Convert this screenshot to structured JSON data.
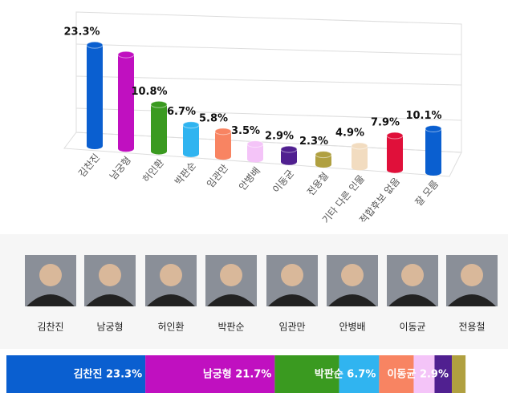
{
  "chart_data": {
    "type": "bar",
    "categories": [
      "김찬진",
      "남궁형",
      "허인환",
      "박판순",
      "임관만",
      "안병배",
      "이동균",
      "전용철",
      "기타 다른 인물",
      "적합후보 없음",
      "잘 모름"
    ],
    "values": [
      23.3,
      21.7,
      10.8,
      6.7,
      5.8,
      3.5,
      2.9,
      2.3,
      4.9,
      7.9,
      10.1
    ],
    "value_labels": [
      "23.3%",
      null,
      "10.8%",
      "6.7%",
      "5.8%",
      "3.5%",
      "2.9%",
      "2.3%",
      "4.9%",
      "7.9%",
      "10.1%"
    ],
    "colors": [
      "#0a5fd0",
      "#c010c0",
      "#3a9a20",
      "#30b4f0",
      "#f88462",
      "#f4c4f8",
      "#502090",
      "#b0a040",
      "#f2dcc0",
      "#e0103a",
      "#0a5fd0"
    ],
    "ylim": [
      0,
      25
    ]
  },
  "candidates": [
    "김찬진",
    "남궁형",
    "허인환",
    "박판순",
    "임관만",
    "안병배",
    "이동균",
    "전용철"
  ],
  "stacked": {
    "type": "stacked-bar",
    "values": [
      23.3,
      21.7,
      10.8,
      6.7,
      5.8,
      3.5,
      2.9,
      2.3
    ],
    "value_labels": [
      "김찬진 23.3%",
      "남궁형 21.7%",
      null,
      "박판순 6.7%",
      null,
      null,
      "이동균 2.9%",
      null
    ],
    "colors": [
      "#0a5fd0",
      "#c010c0",
      "#3a9a20",
      "#30b4f0",
      "#f88462",
      "#f4c4f8",
      "#502090",
      "#b0a040"
    ]
  }
}
